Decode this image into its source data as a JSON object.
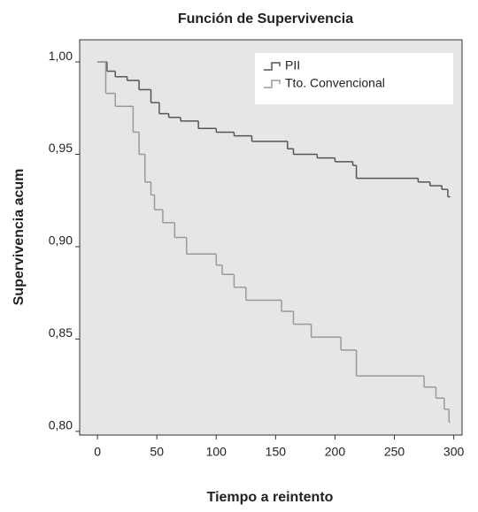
{
  "chart_data": {
    "type": "step",
    "title": "Función de Supervivencia",
    "x_label": "Tiempo a reintento",
    "y_label": "Supervivencia acum",
    "xlim": [
      -15,
      307
    ],
    "ylim": [
      0.798,
      1.012
    ],
    "xticks": [
      0,
      50,
      100,
      150,
      200,
      250,
      300
    ],
    "yticks": [
      {
        "value": 0.8,
        "label": "0,80"
      },
      {
        "value": 0.85,
        "label": "0,85"
      },
      {
        "value": 0.9,
        "label": "0,90"
      },
      {
        "value": 0.95,
        "label": "0,95"
      },
      {
        "value": 1.0,
        "label": "1,00"
      }
    ],
    "legend": "top-right",
    "series": [
      {
        "name": "PII",
        "color": "#555555",
        "x": [
          0,
          8,
          15,
          25,
          35,
          45,
          52,
          60,
          70,
          85,
          100,
          115,
          130,
          160,
          165,
          185,
          200,
          215,
          218,
          270,
          280,
          290,
          295,
          297
        ],
        "values": [
          1.0,
          0.995,
          0.992,
          0.99,
          0.985,
          0.978,
          0.972,
          0.97,
          0.968,
          0.964,
          0.962,
          0.96,
          0.957,
          0.953,
          0.95,
          0.948,
          0.946,
          0.944,
          0.937,
          0.935,
          0.933,
          0.931,
          0.927,
          0.927
        ]
      },
      {
        "name": "Tto. Convencional",
        "color": "#9a9a9a",
        "x": [
          0,
          7,
          15,
          30,
          35,
          40,
          45,
          48,
          55,
          65,
          75,
          100,
          105,
          115,
          125,
          155,
          165,
          180,
          205,
          218,
          275,
          285,
          292,
          296,
          297
        ],
        "values": [
          1.0,
          0.983,
          0.976,
          0.962,
          0.95,
          0.935,
          0.928,
          0.92,
          0.913,
          0.905,
          0.896,
          0.89,
          0.885,
          0.878,
          0.871,
          0.865,
          0.858,
          0.851,
          0.844,
          0.83,
          0.824,
          0.818,
          0.812,
          0.805,
          0.805
        ]
      }
    ]
  }
}
